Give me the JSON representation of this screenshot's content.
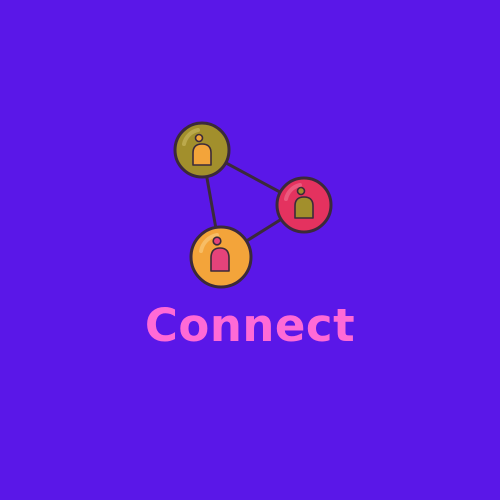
{
  "brand": {
    "name": "Connect"
  },
  "colors": {
    "background": "#5a17e8",
    "text": "#ff6ad6",
    "outline": "#3b2a3a",
    "node_olive": "#a28f2c",
    "node_crimson": "#e4325f",
    "node_orange": "#f3a43a",
    "person_orange": "#f3a43a",
    "person_olive": "#a28f2c",
    "person_pink": "#e4437a"
  },
  "icon": {
    "name": "people-network-icon",
    "nodes": [
      {
        "id": "node-top-left",
        "fill": "#a28f2c",
        "person_fill": "#f3a43a"
      },
      {
        "id": "node-right",
        "fill": "#e4325f",
        "person_fill": "#a28f2c"
      },
      {
        "id": "node-bottom",
        "fill": "#f3a43a",
        "person_fill": "#e4437a"
      }
    ]
  }
}
